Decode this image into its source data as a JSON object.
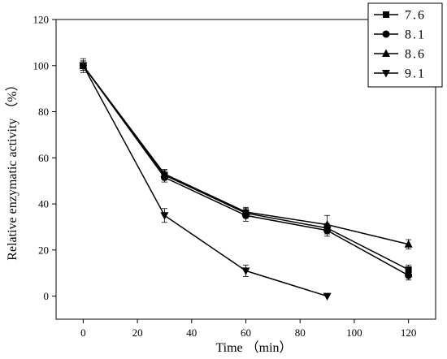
{
  "chart_data": {
    "type": "line",
    "xlabel": "Time （min）",
    "ylabel": "Relative enzymatic activity （%）",
    "xlim": [
      -10,
      130
    ],
    "ylim": [
      -10,
      120
    ],
    "xticks": [
      0,
      20,
      40,
      60,
      80,
      100,
      120
    ],
    "yticks": [
      0,
      20,
      40,
      60,
      80,
      100,
      120
    ],
    "grid": false,
    "legend_position": "top-right",
    "series": [
      {
        "name": "7.6",
        "marker": "square",
        "x": [
          0,
          30,
          60,
          90,
          120
        ],
        "y": [
          100,
          52.5,
          36,
          29.5,
          11.5
        ],
        "err": [
          2,
          2,
          2,
          2,
          2
        ]
      },
      {
        "name": "8.1",
        "marker": "circle",
        "x": [
          0,
          30,
          60,
          90,
          120
        ],
        "y": [
          100,
          51.5,
          35,
          28.5,
          9
        ],
        "err": [
          2,
          2,
          2.5,
          2.5,
          2
        ]
      },
      {
        "name": "8.6",
        "marker": "triangle-up",
        "x": [
          0,
          30,
          60,
          90,
          120
        ],
        "y": [
          100,
          53,
          36.5,
          31,
          22.5
        ],
        "err": [
          2,
          2,
          2,
          4,
          2
        ]
      },
      {
        "name": "9.1",
        "marker": "triangle-down",
        "x": [
          0,
          30,
          60,
          90
        ],
        "y": [
          100,
          35,
          11,
          0
        ],
        "err": [
          3,
          3,
          2.5,
          0
        ]
      }
    ]
  }
}
